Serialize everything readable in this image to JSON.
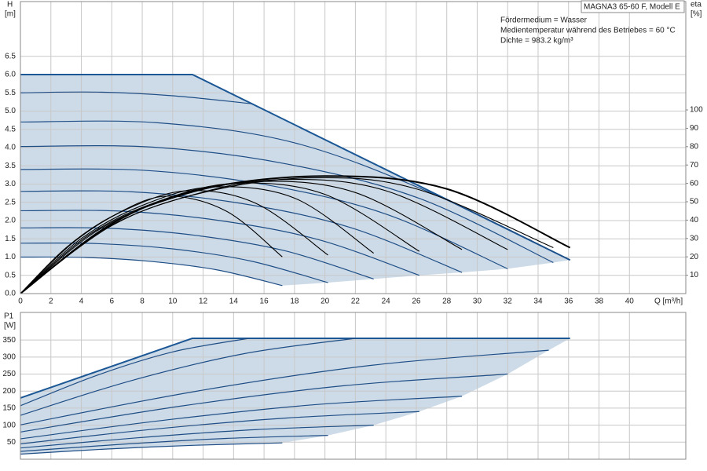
{
  "chart_data": [
    {
      "type": "line",
      "title": "MAGNA3 65-60 F, Modell E",
      "annotations": [
        "Fördermedium = Wasser",
        "Medientemperatur während des Betriebes = 60 °C",
        "Dichte = 983.2 kg/m³"
      ],
      "y_label": "H",
      "y_unit": "[m]",
      "y2_label": "eta",
      "y2_unit": "[%]",
      "x_label": "Q [m³/h]",
      "xlim": [
        0,
        43.7
      ],
      "xticks": [
        0,
        2,
        4,
        6,
        8,
        10,
        12,
        14,
        16,
        18,
        20,
        22,
        24,
        26,
        28,
        30,
        32,
        34,
        36,
        38,
        40
      ],
      "ylim": [
        0,
        8
      ],
      "yticks": [
        {
          "value": 0,
          "label": "0.0"
        },
        0.5,
        {
          "value": 1,
          "label": "1.0"
        },
        1.5,
        {
          "value": 2,
          "label": "2.0"
        },
        2.5,
        {
          "value": 3,
          "label": "3.0"
        },
        3.5,
        {
          "value": 4,
          "label": "4.0"
        },
        4.5,
        {
          "value": 5,
          "label": "5.0"
        },
        5.5,
        {
          "value": 6,
          "label": "6.0"
        },
        6.5
      ],
      "y2lim": [
        0,
        159
      ],
      "y2ticks": [
        10,
        20,
        30,
        40,
        50,
        60,
        70,
        80,
        90,
        100
      ],
      "grid": true,
      "show_xtick_labels": true,
      "area_color": "#cddbe8",
      "curve": "smooth",
      "series": [
        {
          "x": [
            0,
            11.3,
            36.1
          ],
          "values": [
            6,
            6,
            0.92
          ],
          "color": "#1b5795",
          "line_width": 2,
          "curve": "linear"
        },
        {
          "x": [
            0,
            5,
            10,
            15.2
          ],
          "values": [
            5.5,
            5.52,
            5.42,
            5.2
          ],
          "color": "#1f4e86",
          "line_width": 1.2
        },
        {
          "x": [
            0,
            9,
            18,
            27,
            36.1
          ],
          "values": [
            4.7,
            4.68,
            4.13,
            2.75,
            0.92
          ],
          "color": "#1f4e86",
          "line_width": 1.2
        },
        {
          "x": [
            0,
            8.75,
            17.5,
            26.25,
            35
          ],
          "values": [
            4.03,
            4.01,
            3.55,
            2.6,
            0.85
          ],
          "color": "#1f4e86",
          "line_width": 1.2
        },
        {
          "x": [
            0,
            8,
            16,
            24,
            32
          ],
          "values": [
            3.4,
            3.38,
            2.99,
            2.18,
            0.68
          ],
          "color": "#1f4e86",
          "line_width": 1.2
        },
        {
          "x": [
            0,
            7.25,
            14.5,
            21.75,
            29
          ],
          "values": [
            2.8,
            2.79,
            2.47,
            1.8,
            0.58
          ],
          "color": "#1f4e86",
          "line_width": 1.2
        },
        {
          "x": [
            0,
            6.55,
            13.1,
            19.65,
            26.2
          ],
          "values": [
            2.27,
            2.26,
            2.0,
            1.47,
            0.5
          ],
          "color": "#1f4e86",
          "line_width": 1.2
        },
        {
          "x": [
            0,
            5.8,
            11.6,
            17.4,
            23.2
          ],
          "values": [
            1.8,
            1.79,
            1.59,
            1.17,
            0.4
          ],
          "color": "#1f4e86",
          "line_width": 1.2
        },
        {
          "x": [
            0,
            5.05,
            10.1,
            15.15,
            20.2
          ],
          "values": [
            1.38,
            1.37,
            1.22,
            0.89,
            0.3
          ],
          "color": "#1f4e86",
          "line_width": 1.2
        },
        {
          "x": [
            0,
            4.3,
            8.6,
            12.9,
            17.2
          ],
          "values": [
            1.0,
            0.99,
            0.88,
            0.65,
            0.22
          ],
          "color": "#1f4e86",
          "line_width": 1.2
        },
        {
          "x": [
            0,
            3,
            6,
            9.5,
            13.5,
            17.2
          ],
          "values": [
            0,
            25,
            42,
            53,
            45,
            20
          ],
          "color": "#000000",
          "line_width": 1.1,
          "axis": "y2"
        },
        {
          "x": [
            0,
            3.5,
            7,
            11,
            15.5,
            20.2
          ],
          "values": [
            0,
            28,
            46,
            56,
            49,
            21
          ],
          "color": "#000000",
          "line_width": 1.1,
          "axis": "y2"
        },
        {
          "x": [
            0,
            4,
            8,
            12.5,
            18,
            23.2
          ],
          "values": [
            0,
            30,
            48,
            58,
            52,
            22
          ],
          "color": "#000000",
          "line_width": 1.1,
          "axis": "y2"
        },
        {
          "x": [
            0,
            4.5,
            9,
            14,
            20,
            26.2
          ],
          "values": [
            0,
            32,
            50,
            60,
            54,
            23
          ],
          "color": "#000000",
          "line_width": 1.1,
          "axis": "y2"
        },
        {
          "x": [
            0,
            5,
            10,
            15.5,
            22,
            29
          ],
          "values": [
            0,
            34,
            52,
            61,
            55,
            24
          ],
          "color": "#000000",
          "line_width": 1.1,
          "axis": "y2"
        },
        {
          "x": [
            0,
            5.5,
            11,
            17,
            24,
            32
          ],
          "values": [
            0,
            35,
            53,
            62,
            56,
            24
          ],
          "color": "#000000",
          "line_width": 1.1,
          "axis": "y2"
        },
        {
          "x": [
            0,
            6,
            12,
            19,
            26,
            35
          ],
          "values": [
            0,
            37,
            55,
            63,
            57,
            25
          ],
          "color": "#000000",
          "line_width": 1.1,
          "axis": "y2"
        },
        {
          "x": [
            0,
            6,
            12,
            20,
            28,
            36.1
          ],
          "values": [
            0,
            38,
            57,
            64,
            57,
            25
          ],
          "color": "#000000",
          "line_width": 2,
          "axis": "y2"
        }
      ]
    },
    {
      "type": "line",
      "y_label": "P1",
      "y_unit": "[W]",
      "xlim": [
        0,
        43.7
      ],
      "xticks": [
        0,
        2,
        4,
        6,
        8,
        10,
        12,
        14,
        16,
        18,
        20,
        22,
        24,
        26,
        28,
        30,
        32,
        34,
        36,
        38,
        40
      ],
      "ylim": [
        0,
        431
      ],
      "yticks": [
        50,
        100,
        150,
        200,
        250,
        300,
        350
      ],
      "grid": true,
      "show_xtick_labels": false,
      "area_color": "#cddbe8",
      "curve": "smooth",
      "series": [
        {
          "x": [
            0,
            11.3,
            36.1
          ],
          "values": [
            180,
            355,
            355
          ],
          "color": "#1b5795",
          "line_width": 2,
          "curve": "linear"
        },
        {
          "x": [
            0,
            5,
            10,
            15
          ],
          "values": [
            157,
            246,
            315,
            355
          ],
          "color": "#1f4e86",
          "line_width": 1.2
        },
        {
          "x": [
            0,
            7.3,
            14.7,
            22
          ],
          "values": [
            129,
            231,
            310,
            355
          ],
          "color": "#1f4e86",
          "line_width": 1.2
        },
        {
          "x": [
            0,
            11.6,
            23.1,
            34.7
          ],
          "values": [
            101,
            200,
            276,
            320
          ],
          "color": "#1f4e86",
          "line_width": 1.2
        },
        {
          "x": [
            0,
            10.7,
            21.3,
            32
          ],
          "values": [
            80,
            157,
            216,
            250
          ],
          "color": "#1f4e86",
          "line_width": 1.2
        },
        {
          "x": [
            0,
            9.7,
            19.3,
            29
          ],
          "values": [
            60,
            116,
            160,
            185
          ],
          "color": "#1f4e86",
          "line_width": 1.2
        },
        {
          "x": [
            0,
            8.7,
            17.5,
            26.2
          ],
          "values": [
            45,
            88,
            121,
            140
          ],
          "color": "#1f4e86",
          "line_width": 1.2
        },
        {
          "x": [
            0,
            7.7,
            15.5,
            23.2
          ],
          "values": [
            33,
            63,
            87,
            100
          ],
          "color": "#1f4e86",
          "line_width": 1.2
        },
        {
          "x": [
            0,
            6.7,
            13.5,
            20.2
          ],
          "values": [
            23,
            44,
            61,
            70
          ],
          "color": "#1f4e86",
          "line_width": 1.2
        },
        {
          "x": [
            0,
            5.7,
            11.5,
            17.2
          ],
          "values": [
            15,
            30,
            41,
            48
          ],
          "color": "#1f4e86",
          "line_width": 1.2
        }
      ]
    }
  ]
}
